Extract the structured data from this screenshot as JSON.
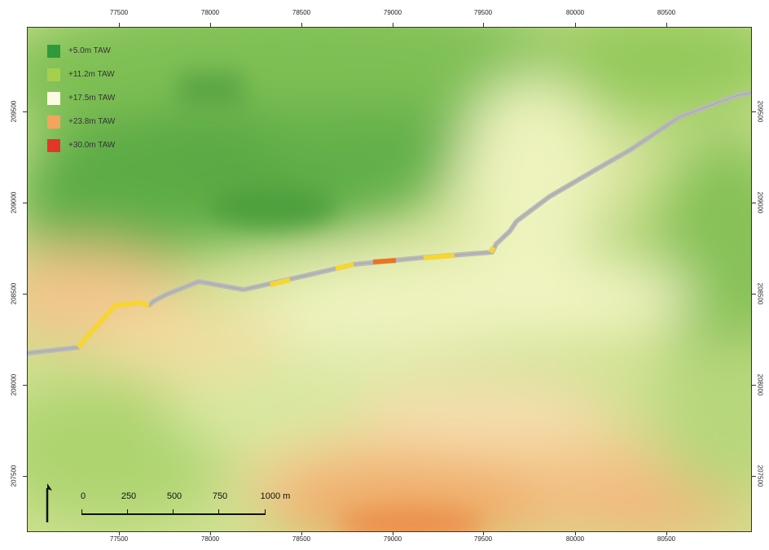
{
  "legend": {
    "items": [
      {
        "label": "+5.0m TAW",
        "color": "#2e9a3c"
      },
      {
        "label": "+11.2m TAW",
        "color": "#a6cf4f"
      },
      {
        "label": "+17.5m TAW",
        "color": "#fbfbe4"
      },
      {
        "label": "+23.8m TAW",
        "color": "#f3a55e"
      },
      {
        "label": "+30.0m TAW",
        "color": "#e2362a"
      }
    ]
  },
  "axes": {
    "x_ticks": [
      "77500",
      "78000",
      "78500",
      "79000",
      "79500",
      "80000",
      "80500"
    ],
    "y_ticks": [
      "207500",
      "208000",
      "208500",
      "209000",
      "209500"
    ]
  },
  "scale_bar": {
    "labels": [
      "0",
      "250",
      "500",
      "750",
      "1000 m"
    ]
  },
  "route": {
    "base_color": "#b9b9b9",
    "segment_colors": {
      "yellow": "#f7d634",
      "orange": "#ea7520"
    }
  },
  "icons": {
    "north_arrow": "north-arrow-icon"
  }
}
